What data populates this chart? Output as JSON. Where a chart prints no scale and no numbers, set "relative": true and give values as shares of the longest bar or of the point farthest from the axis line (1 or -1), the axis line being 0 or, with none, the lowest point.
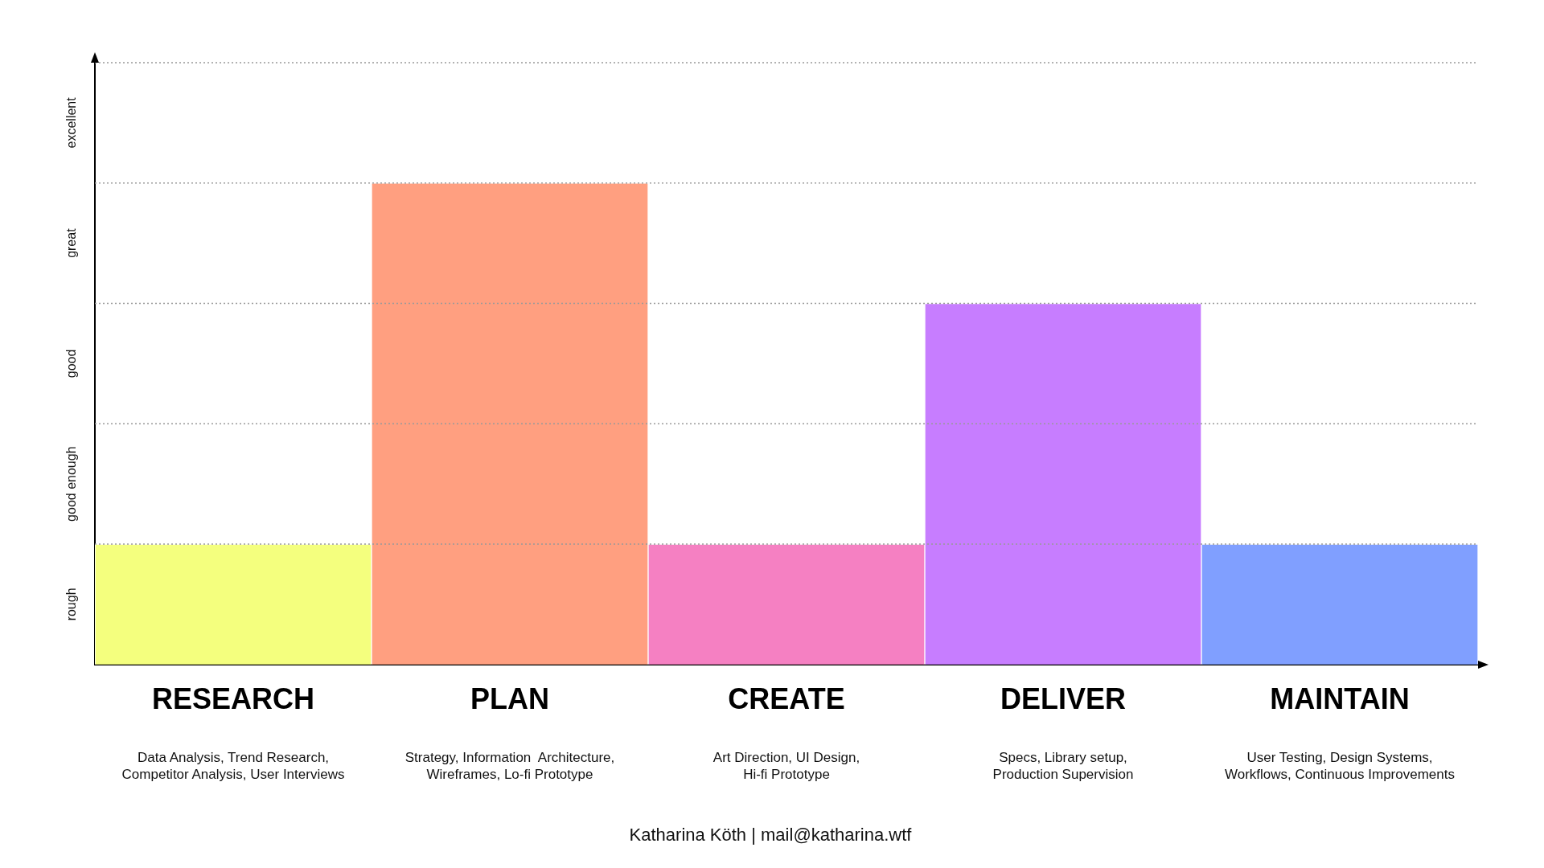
{
  "chart_data": {
    "type": "bar",
    "categories": [
      "RESEARCH",
      "PLAN",
      "CREATE",
      "DELIVER",
      "MAINTAIN"
    ],
    "values": [
      0.25,
      1,
      0.25,
      0.75,
      0.25
    ],
    "colors": [
      "#f4ff7e",
      "#ff9f80",
      "#f580c2",
      "#c77dff",
      "#809fff"
    ],
    "relative": true,
    "ref_lines": [
      {
        "axis": "y",
        "value": 0.25,
        "line_style": "dotted",
        "color": "#999999"
      },
      {
        "axis": "y",
        "value": 0.5,
        "line_style": "dotted",
        "color": "#999999"
      },
      {
        "axis": "y",
        "value": 0.75,
        "line_style": "dotted",
        "color": "#999999"
      },
      {
        "axis": "y",
        "value": 1,
        "line_style": "dotted",
        "color": "#999999"
      },
      {
        "axis": "y",
        "value": 1.25,
        "line_style": "dotted",
        "color": "#999999"
      }
    ],
    "annotations": [
      "Data Analysis, Trend Research,\nCompetitor Analysis, User Interviews",
      "Strategy, Information  Architecture,\nWireframes, Lo-fi Prototype",
      "Art Direction, UI Design,\nHi-fi Prototype",
      "Specs, Library setup,\nProduction Supervision",
      "User Testing, Design Systems,\nWorkflows, Continuous Improvements",
      "rough",
      "good enough",
      "good",
      "great",
      "excellent",
      "Katharina Köth | mail@katharina.wtf"
    ]
  }
}
